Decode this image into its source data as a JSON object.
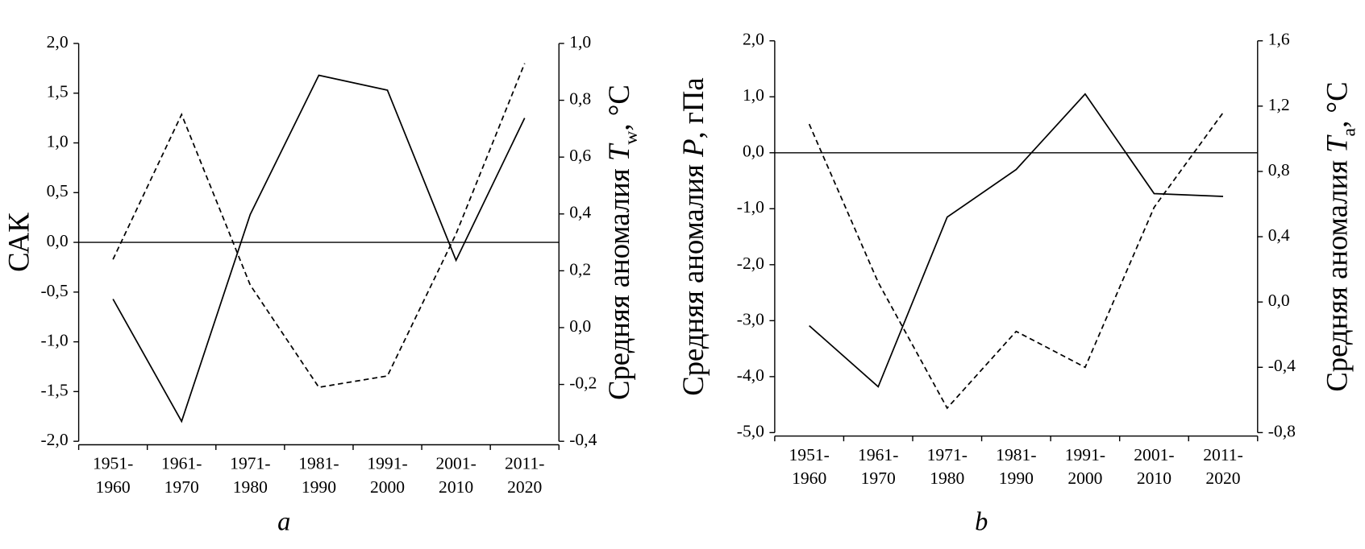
{
  "chart_data": [
    {
      "type": "line",
      "caption": "a",
      "ylabel": [
        "САК"
      ],
      "y2label": [
        "Средняя аномалия ",
        "T",
        "w",
        ", °C"
      ],
      "categories": [
        "1951-\n1960",
        "1961-\n1970",
        "1971-\n1980",
        "1981-\n1990",
        "1991-\n2000",
        "2001-\n2010",
        "2011-\n2020"
      ],
      "ylim": [
        -2,
        2
      ],
      "yticks": [
        {
          "value": -2,
          "label": "-2,0"
        },
        {
          "value": -1.5,
          "label": "-1,5"
        },
        {
          "value": -1,
          "label": "-1,0"
        },
        {
          "value": -0.5,
          "label": "-0,5"
        },
        {
          "value": 0,
          "label": "0,0"
        },
        {
          "value": 0.5,
          "label": "0,5"
        },
        {
          "value": 1,
          "label": "1,0"
        },
        {
          "value": 1.5,
          "label": "1,5"
        },
        {
          "value": 2,
          "label": "2,0"
        }
      ],
      "y2lim": [
        -0.4,
        1
      ],
      "y2ticks": [
        {
          "value": -0.4,
          "label": "-0,4"
        },
        {
          "value": -0.2,
          "label": "-0,2"
        },
        {
          "value": 0,
          "label": "0,0"
        },
        {
          "value": 0.2,
          "label": "0,2"
        },
        {
          "value": 0.4,
          "label": "0,4"
        },
        {
          "value": 0.6,
          "label": "0,6"
        },
        {
          "value": 0.8,
          "label": "0,8"
        },
        {
          "value": 1,
          "label": "1,0"
        }
      ],
      "hline": 0,
      "series": [
        {
          "color": "#000000",
          "line_style": "solid",
          "values": [
            -0.57,
            -1.8,
            0.28,
            1.68,
            1.53,
            -0.18,
            1.25
          ]
        },
        {
          "color": "#000000",
          "line_style": "dashed",
          "axis": "y2",
          "values": [
            0.24,
            0.75,
            0.15,
            -0.21,
            -0.17,
            0.33,
            0.93
          ]
        }
      ]
    },
    {
      "type": "line",
      "caption": "b",
      "ylabel": [
        "Средняя аномалия ",
        "P",
        ", гПа"
      ],
      "y2label": [
        "Средняя аномалия ",
        "T",
        "a",
        ", °C"
      ],
      "categories": [
        "1951-\n1960",
        "1961-\n1970",
        "1971-\n1980",
        "1981-\n1990",
        "1991-\n2000",
        "2001-\n2010",
        "2011-\n2020"
      ],
      "ylim": [
        -5,
        2
      ],
      "yticks": [
        {
          "value": -5,
          "label": "-5,0"
        },
        {
          "value": -4,
          "label": "-4,0"
        },
        {
          "value": -3,
          "label": "-3,0"
        },
        {
          "value": -2,
          "label": "-2,0"
        },
        {
          "value": -1,
          "label": "-1,0"
        },
        {
          "value": 0,
          "label": "0,0"
        },
        {
          "value": 1,
          "label": "1,0"
        },
        {
          "value": 2,
          "label": "2,0"
        }
      ],
      "y2lim": [
        -0.8,
        1.6
      ],
      "y2ticks": [
        {
          "value": -0.8,
          "label": "-0,8"
        },
        {
          "value": -0.4,
          "label": "-0,4"
        },
        {
          "value": 0,
          "label": "0,0"
        },
        {
          "value": 0.4,
          "label": "0,4"
        },
        {
          "value": 0.8,
          "label": "0,8"
        },
        {
          "value": 1.2,
          "label": "1,2"
        },
        {
          "value": 1.6,
          "label": "1,6"
        }
      ],
      "hline": 0,
      "series": [
        {
          "color": "#000000",
          "line_style": "solid",
          "values": [
            -3.09,
            -4.18,
            -1.15,
            -0.3,
            1.05,
            -0.73,
            -0.78
          ]
        },
        {
          "color": "#000000",
          "line_style": "dashed",
          "axis": "y2",
          "values": [
            1.09,
            0.12,
            -0.65,
            -0.18,
            -0.4,
            0.58,
            1.16
          ]
        }
      ]
    }
  ]
}
